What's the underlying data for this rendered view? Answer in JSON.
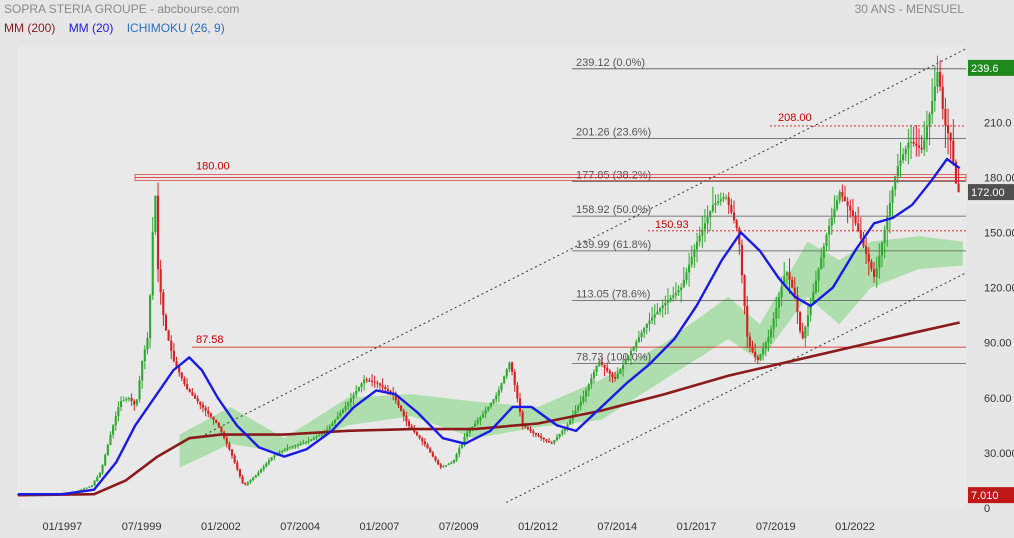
{
  "header": {
    "title": "SOPRA STERIA GROUPE - abcbourse.com",
    "period": "30 ANS - MENSUEL"
  },
  "legend": [
    {
      "label": "MM (200)",
      "color": "#8b1a1a"
    },
    {
      "label": "MM (20)",
      "color": "#1a1ae6"
    },
    {
      "label": "ICHIMOKU (26, 9)",
      "color": "#2a6cc7"
    }
  ],
  "chart_data": {
    "type": "candlestick",
    "x_ticks": [
      "01/1997",
      "07/1999",
      "01/2002",
      "07/2004",
      "01/2007",
      "07/2009",
      "01/2012",
      "07/2014",
      "01/2017",
      "07/2019",
      "01/2022"
    ],
    "y_ticks": [
      "210.0",
      "180.00",
      "150.00",
      "120.00",
      "90.00",
      "60.00",
      "30.000",
      "0"
    ],
    "ylim": [
      0,
      245
    ],
    "last_price": "172.00",
    "high_price": "239.6",
    "low_price": "7.010",
    "fibonacci": [
      {
        "label": "239.12  (0.0%)",
        "value": 239.12
      },
      {
        "label": "201.26  (23.6%)",
        "value": 201.26
      },
      {
        "label": "177.85  (38.2%)",
        "value": 177.85
      },
      {
        "label": "158.92  (50.0%)",
        "value": 158.92
      },
      {
        "label": "139.99  (61.8%)",
        "value": 139.99
      },
      {
        "label": "113.05  (78.6%)",
        "value": 113.05
      },
      {
        "label": "78.73  (100.0%)",
        "value": 78.73
      }
    ],
    "horizontal_levels": [
      {
        "label": "180.00",
        "value": 180.0,
        "style": "solid"
      },
      {
        "label": "87.58",
        "value": 87.58,
        "style": "solid"
      },
      {
        "label": "208.00",
        "value": 208.0,
        "style": "dotted"
      },
      {
        "label": "150.93",
        "value": 150.93,
        "style": "dotted"
      }
    ],
    "price_path": [
      [
        1995.6,
        7.5
      ],
      [
        1996.5,
        7.2
      ],
      [
        1997.0,
        8.0
      ],
      [
        1997.5,
        9.0
      ],
      [
        1998.0,
        12.0
      ],
      [
        1998.3,
        20.0
      ],
      [
        1998.6,
        40.0
      ],
      [
        1998.9,
        58.0
      ],
      [
        1999.2,
        60.0
      ],
      [
        1999.4,
        55.0
      ],
      [
        1999.6,
        80.0
      ],
      [
        1999.8,
        95.0
      ],
      [
        2000.0,
        178.0
      ],
      [
        2000.1,
        130.0
      ],
      [
        2000.3,
        100.0
      ],
      [
        2000.6,
        80.0
      ],
      [
        2001.0,
        65.0
      ],
      [
        2001.5,
        55.0
      ],
      [
        2002.0,
        45.0
      ],
      [
        2002.4,
        30.0
      ],
      [
        2002.8,
        12.0
      ],
      [
        2003.2,
        18.0
      ],
      [
        2003.7,
        28.0
      ],
      [
        2004.2,
        33.0
      ],
      [
        2004.8,
        36.0
      ],
      [
        2005.4,
        42.0
      ],
      [
        2006.0,
        55.0
      ],
      [
        2006.6,
        70.0
      ],
      [
        2007.0,
        68.0
      ],
      [
        2007.5,
        62.0
      ],
      [
        2008.0,
        45.0
      ],
      [
        2008.5,
        35.0
      ],
      [
        2009.0,
        22.0
      ],
      [
        2009.4,
        25.0
      ],
      [
        2009.8,
        40.0
      ],
      [
        2010.3,
        50.0
      ],
      [
        2010.8,
        62.0
      ],
      [
        2011.2,
        80.0
      ],
      [
        2011.6,
        45.0
      ],
      [
        2012.0,
        40.0
      ],
      [
        2012.5,
        35.0
      ],
      [
        2013.0,
        45.0
      ],
      [
        2013.5,
        60.0
      ],
      [
        2014.0,
        80.0
      ],
      [
        2014.5,
        70.0
      ],
      [
        2015.0,
        85.0
      ],
      [
        2015.5,
        100.0
      ],
      [
        2016.0,
        110.0
      ],
      [
        2016.6,
        120.0
      ],
      [
        2017.1,
        145.0
      ],
      [
        2017.6,
        165.0
      ],
      [
        2018.0,
        170.0
      ],
      [
        2018.4,
        150.0
      ],
      [
        2018.7,
        90.0
      ],
      [
        2019.0,
        80.0
      ],
      [
        2019.4,
        95.0
      ],
      [
        2019.9,
        130.0
      ],
      [
        2020.2,
        115.0
      ],
      [
        2020.4,
        90.0
      ],
      [
        2020.8,
        120.0
      ],
      [
        2021.2,
        150.0
      ],
      [
        2021.6,
        172.0
      ],
      [
        2022.0,
        160.0
      ],
      [
        2022.4,
        140.0
      ],
      [
        2022.7,
        125.0
      ],
      [
        2023.0,
        150.0
      ],
      [
        2023.4,
        185.0
      ],
      [
        2023.8,
        200.0
      ],
      [
        2024.2,
        195.0
      ],
      [
        2024.5,
        220.0
      ],
      [
        2024.7,
        239.0
      ],
      [
        2024.9,
        210.0
      ],
      [
        2025.1,
        200.0
      ],
      [
        2025.3,
        172.0
      ]
    ],
    "mm20_path": [
      [
        1995.6,
        7.5
      ],
      [
        1997.0,
        7.5
      ],
      [
        1998.0,
        10.0
      ],
      [
        1998.7,
        25.0
      ],
      [
        1999.3,
        45.0
      ],
      [
        1999.9,
        60.0
      ],
      [
        2000.5,
        75.0
      ],
      [
        2001.0,
        82.0
      ],
      [
        2001.4,
        75.0
      ],
      [
        2001.9,
        60.0
      ],
      [
        2002.5,
        45.0
      ],
      [
        2003.2,
        33.0
      ],
      [
        2004.0,
        28.0
      ],
      [
        2004.7,
        32.0
      ],
      [
        2005.5,
        42.0
      ],
      [
        2006.2,
        55.0
      ],
      [
        2006.9,
        64.0
      ],
      [
        2007.5,
        62.0
      ],
      [
        2008.2,
        52.0
      ],
      [
        2009.0,
        38.0
      ],
      [
        2009.7,
        35.0
      ],
      [
        2010.5,
        42.0
      ],
      [
        2011.2,
        55.0
      ],
      [
        2011.8,
        55.0
      ],
      [
        2012.6,
        45.0
      ],
      [
        2013.2,
        42.0
      ],
      [
        2014.0,
        55.0
      ],
      [
        2014.8,
        68.0
      ],
      [
        2015.5,
        78.0
      ],
      [
        2016.3,
        92.0
      ],
      [
        2017.0,
        110.0
      ],
      [
        2017.8,
        135.0
      ],
      [
        2018.4,
        150.0
      ],
      [
        2019.0,
        140.0
      ],
      [
        2019.6,
        125.0
      ],
      [
        2020.1,
        115.0
      ],
      [
        2020.6,
        110.0
      ],
      [
        2021.3,
        120.0
      ],
      [
        2022.0,
        140.0
      ],
      [
        2022.6,
        155.0
      ],
      [
        2023.2,
        158.0
      ],
      [
        2023.8,
        165.0
      ],
      [
        2024.4,
        178.0
      ],
      [
        2024.9,
        190.0
      ],
      [
        2025.3,
        185.0
      ]
    ],
    "mm200_path": [
      [
        1995.6,
        7.0
      ],
      [
        1998.0,
        7.5
      ],
      [
        1999.0,
        15.0
      ],
      [
        2000.0,
        28.0
      ],
      [
        2001.0,
        38.0
      ],
      [
        2002.0,
        40.0
      ],
      [
        2004.0,
        40.0
      ],
      [
        2006.0,
        42.0
      ],
      [
        2008.0,
        43.0
      ],
      [
        2010.0,
        43.0
      ],
      [
        2012.0,
        46.0
      ],
      [
        2014.0,
        53.0
      ],
      [
        2016.0,
        62.0
      ],
      [
        2018.0,
        72.0
      ],
      [
        2020.0,
        80.0
      ],
      [
        2022.0,
        88.0
      ],
      [
        2024.0,
        96.0
      ],
      [
        2025.3,
        101.0
      ]
    ],
    "ichimoku_cloud": [
      [
        2000.7,
        22.0,
        40.0
      ],
      [
        2002.3,
        35.0,
        55.0
      ],
      [
        2004.0,
        30.0,
        38.0
      ],
      [
        2006.0,
        45.0,
        60.0
      ],
      [
        2008.0,
        50.0,
        62.0
      ],
      [
        2010.0,
        38.0,
        58.0
      ],
      [
        2012.0,
        44.0,
        55.0
      ],
      [
        2014.0,
        48.0,
        70.0
      ],
      [
        2016.0,
        70.0,
        90.0
      ],
      [
        2018.0,
        92.0,
        115.0
      ],
      [
        2019.0,
        80.0,
        100.0
      ],
      [
        2020.5,
        115.0,
        145.0
      ],
      [
        2021.5,
        100.0,
        135.0
      ],
      [
        2022.5,
        120.0,
        145.0
      ],
      [
        2024.0,
        130.0,
        148.0
      ],
      [
        2025.4,
        132.0,
        145.0
      ]
    ],
    "trend_channel": [
      {
        "from": [
          2001.5,
          40.0
        ],
        "to": [
          2025.5,
          250.0
        ]
      },
      {
        "from": [
          2011.0,
          3.0
        ],
        "to": [
          2025.5,
          128.0
        ]
      }
    ]
  }
}
